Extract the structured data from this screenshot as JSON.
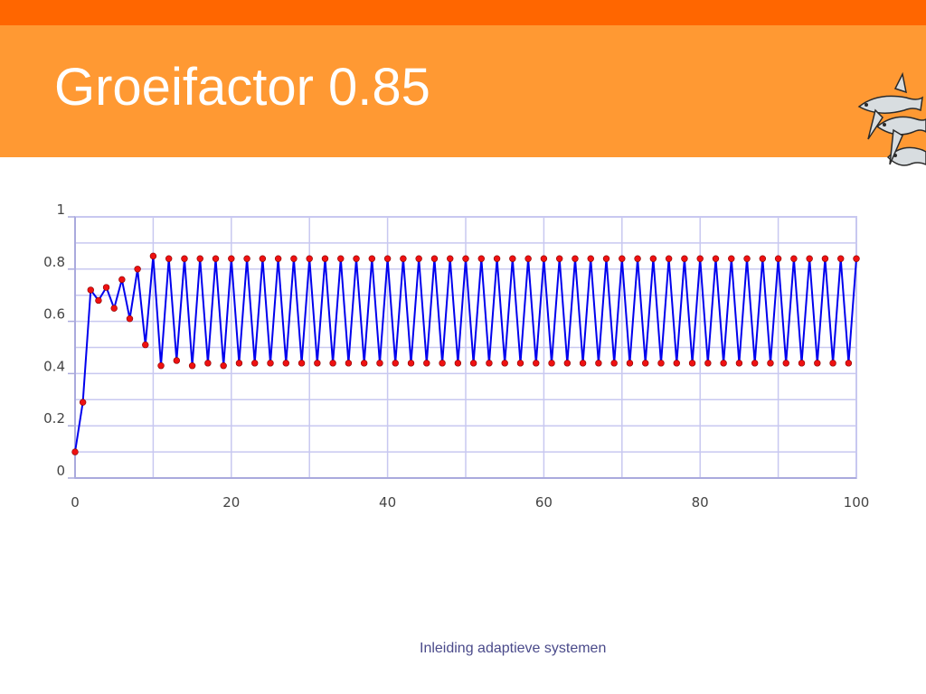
{
  "slide": {
    "title": "Groeifactor 0.85",
    "footer": "Inleiding adaptieve systemen",
    "logo_icon": "fish-school-icon"
  },
  "colors": {
    "top_strip": "#ff6600",
    "header": "#ff9933",
    "line": "#0000ee",
    "points": "#ee1111",
    "grid": "#c8c8f0"
  },
  "chart_data": {
    "type": "line",
    "title": "",
    "xlabel": "",
    "ylabel": "",
    "xlim": [
      0,
      100
    ],
    "ylim": [
      0,
      1
    ],
    "xticks": [
      "0",
      "20",
      "40",
      "60",
      "80",
      "100"
    ],
    "yticks": [
      "0",
      "0.2",
      "0.4",
      "0.6",
      "0.8",
      "1"
    ],
    "grid": true,
    "legend": "none",
    "series": [
      {
        "x": [
          0,
          1,
          2,
          3,
          4,
          5,
          6,
          7,
          8,
          9,
          10,
          11,
          12,
          13,
          14,
          15,
          16,
          17,
          18,
          19,
          20,
          21,
          22,
          23,
          24,
          25,
          26,
          27,
          28,
          29,
          30,
          31,
          32,
          33,
          34,
          35,
          36,
          37,
          38,
          39,
          40,
          41,
          42,
          43,
          44,
          45,
          46,
          47,
          48,
          49,
          50,
          51,
          52,
          53,
          54,
          55,
          56,
          57,
          58,
          59,
          60,
          61,
          62,
          63,
          64,
          65,
          66,
          67,
          68,
          69,
          70,
          71,
          72,
          73,
          74,
          75,
          76,
          77,
          78,
          79,
          80,
          81,
          82,
          83,
          84,
          85,
          86,
          87,
          88,
          89,
          90,
          91,
          92,
          93,
          94,
          95,
          96,
          97,
          98,
          99,
          100
        ],
        "y": [
          0.1,
          0.29,
          0.72,
          0.68,
          0.73,
          0.65,
          0.76,
          0.61,
          0.8,
          0.51,
          0.85,
          0.43,
          0.84,
          0.45,
          0.84,
          0.43,
          0.84,
          0.44,
          0.84,
          0.43,
          0.84,
          0.44,
          0.84,
          0.44,
          0.84,
          0.44,
          0.84,
          0.44,
          0.84,
          0.44,
          0.84,
          0.44,
          0.84,
          0.44,
          0.84,
          0.44,
          0.84,
          0.44,
          0.84,
          0.44,
          0.84,
          0.44,
          0.84,
          0.44,
          0.84,
          0.44,
          0.84,
          0.44,
          0.84,
          0.44,
          0.84,
          0.44,
          0.84,
          0.44,
          0.84,
          0.44,
          0.84,
          0.44,
          0.84,
          0.44,
          0.84,
          0.44,
          0.84,
          0.44,
          0.84,
          0.44,
          0.84,
          0.44,
          0.84,
          0.44,
          0.84,
          0.44,
          0.84,
          0.44,
          0.84,
          0.44,
          0.84,
          0.44,
          0.84,
          0.44,
          0.84,
          0.44,
          0.84,
          0.44,
          0.84,
          0.44,
          0.84,
          0.44,
          0.84,
          0.44,
          0.84,
          0.44,
          0.84,
          0.44,
          0.84,
          0.44,
          0.84,
          0.44,
          0.84,
          0.44,
          0.84
        ]
      }
    ]
  }
}
